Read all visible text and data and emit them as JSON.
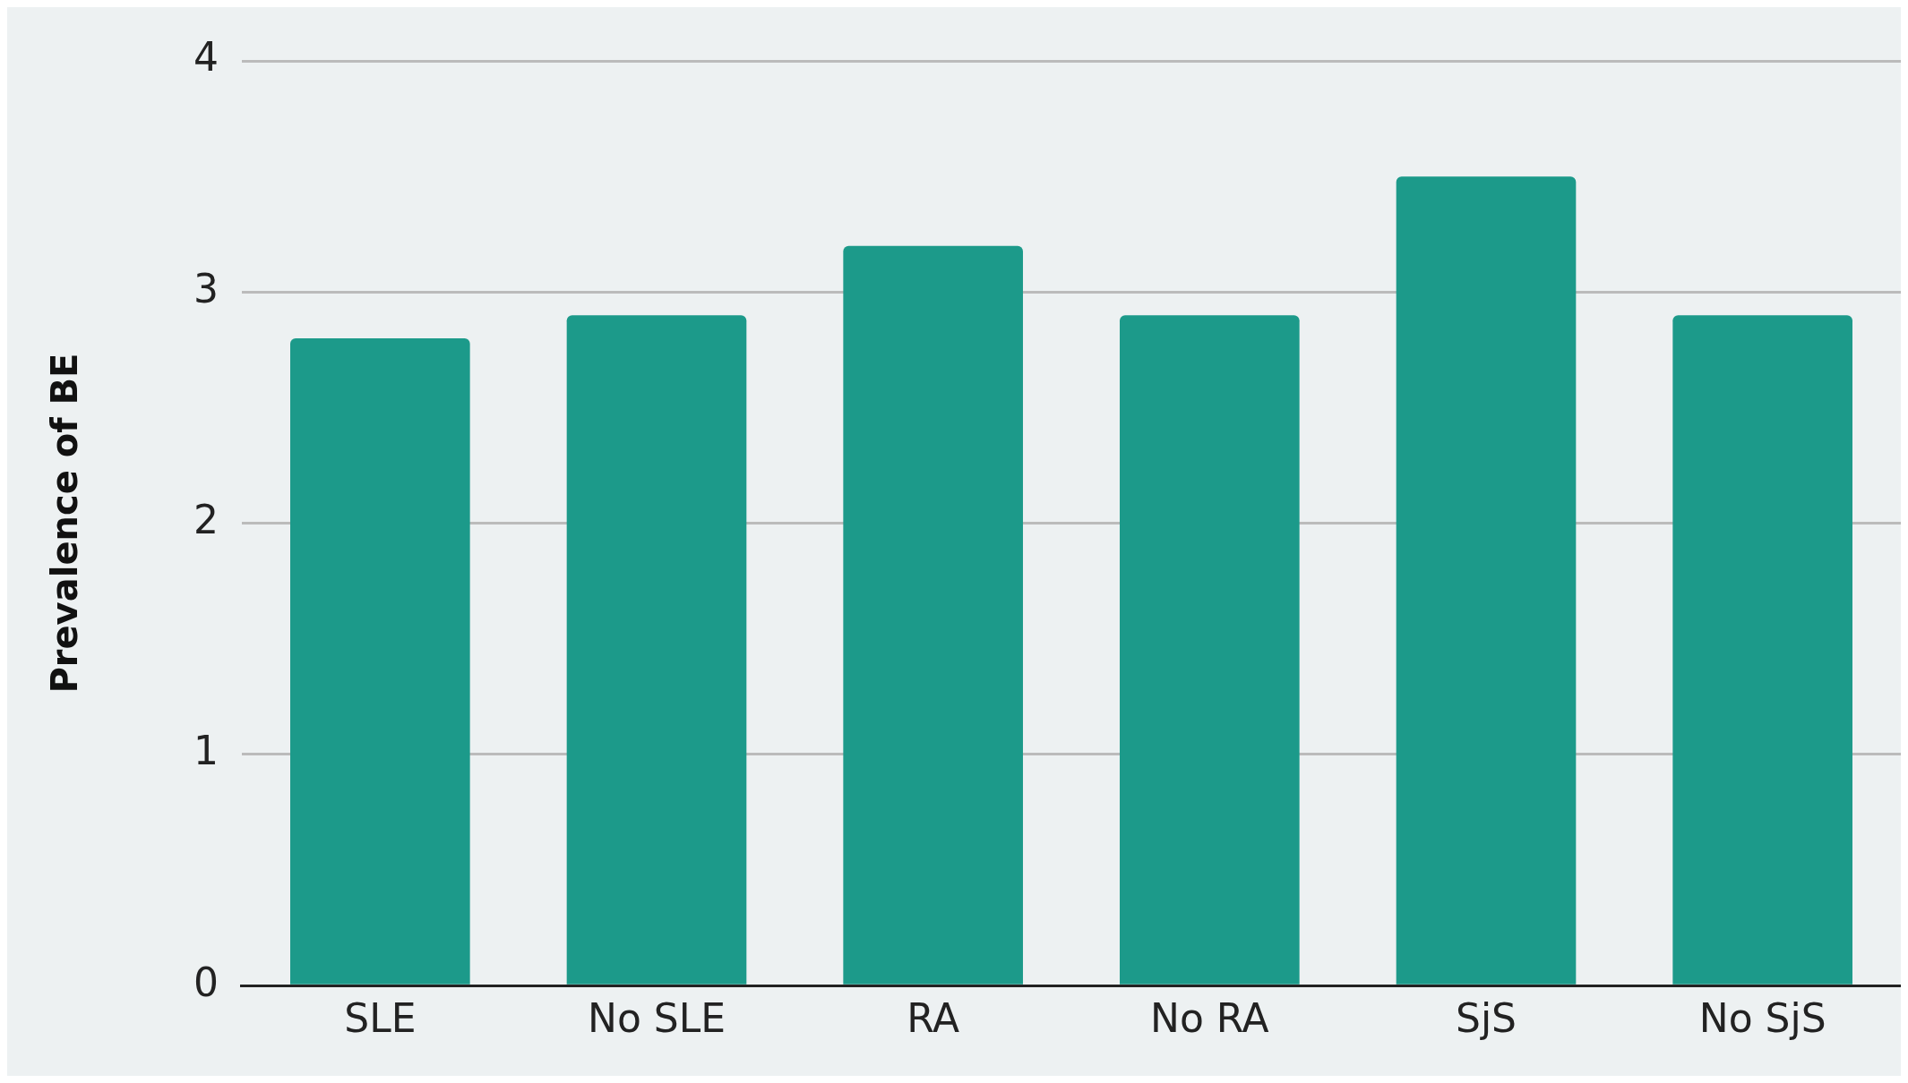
{
  "chart_data": {
    "type": "bar",
    "ylabel": "Prevalence of BE",
    "categories": [
      "SLE",
      "No SLE",
      "RA",
      "No RA",
      "SjS",
      "No SjS"
    ],
    "values": [
      2.8,
      2.9,
      3.2,
      2.9,
      3.5,
      2.9
    ],
    "color": "#1c9a8a",
    "ylim": [
      0,
      4
    ],
    "yticks": [
      0,
      1,
      2,
      3,
      4
    ],
    "grid": "y",
    "legend": false
  }
}
